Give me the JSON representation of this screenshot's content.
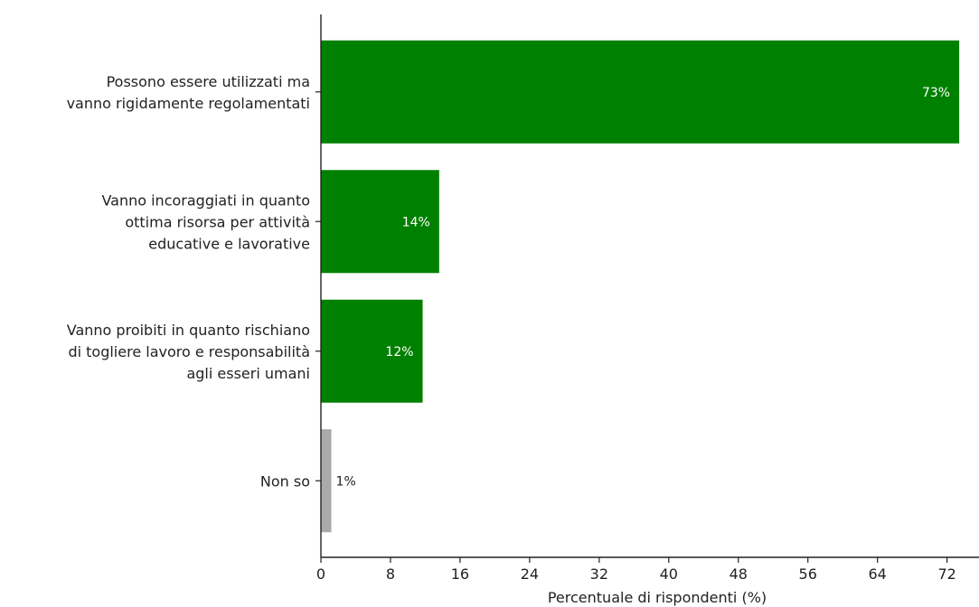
{
  "chart_data": {
    "type": "bar",
    "orientation": "horizontal",
    "categories": [
      [
        "Possono essere utilizzati ma",
        "vanno rigidamente regolamentati"
      ],
      [
        "Vanno incoraggiati in quanto",
        "ottima risorsa per attività",
        "educative e lavorative"
      ],
      [
        "Vanno proibiti in quanto rischiano",
        "di togliere lavoro e responsabilità",
        "agli esseri umani"
      ],
      [
        "Non so"
      ]
    ],
    "values": [
      73.4,
      13.6,
      11.7,
      1.2
    ],
    "value_labels": [
      "73%",
      "14%",
      "12%",
      "1%"
    ],
    "bar_colors": [
      "#008000",
      "#008000",
      "#008000",
      "#aaaaaa"
    ],
    "xlabel": "Percentuale di rispondenti (%)",
    "xticks": [
      0,
      8,
      16,
      24,
      32,
      40,
      48,
      56,
      64,
      72
    ],
    "xlim": [
      0,
      76
    ],
    "grid": false,
    "legend": false
  }
}
